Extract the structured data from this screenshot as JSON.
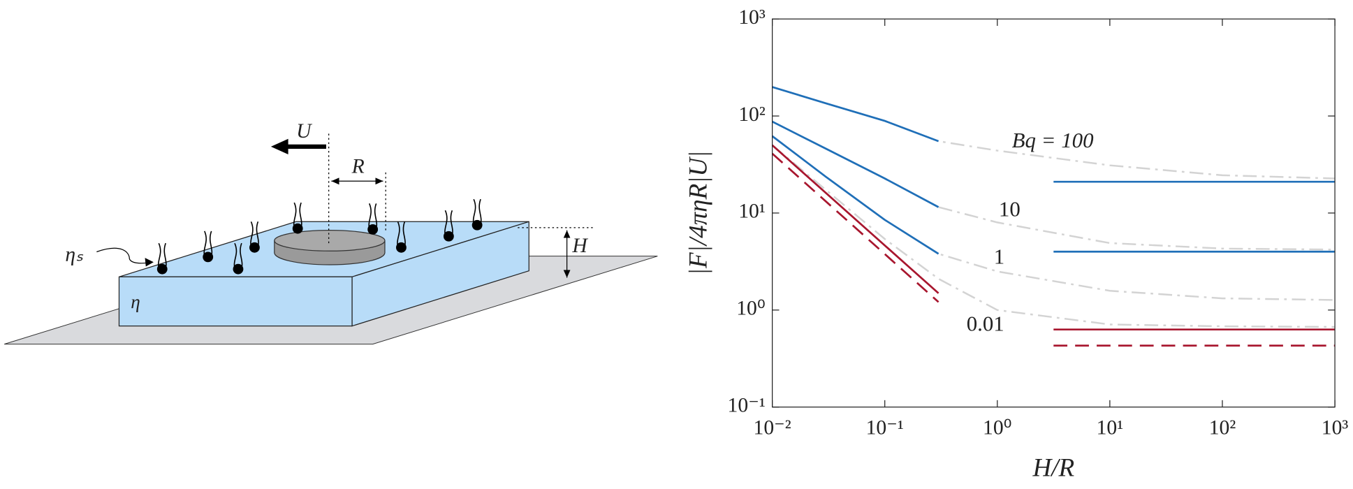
{
  "diagram": {
    "labels": {
      "U": "U",
      "R": "R",
      "H": "H",
      "eta_s": "ηₛ",
      "eta": "η"
    }
  },
  "chart_data": {
    "type": "line",
    "xlabel": "H/R",
    "ylabel": "|F|/4πηR|U|",
    "xscale": "log",
    "yscale": "log",
    "xlim": [
      0.01,
      1000
    ],
    "ylim": [
      0.1,
      1000
    ],
    "xticks": [
      {
        "value": 0.01,
        "label": "10⁻²"
      },
      {
        "value": 0.1,
        "label": "10⁻¹"
      },
      {
        "value": 1,
        "label": "10⁰"
      },
      {
        "value": 10,
        "label": "10¹"
      },
      {
        "value": 100,
        "label": "10²"
      },
      {
        "value": 1000,
        "label": "10³"
      }
    ],
    "yticks": [
      {
        "value": 0.1,
        "label": "10⁻¹"
      },
      {
        "value": 1,
        "label": "10⁰"
      },
      {
        "value": 10,
        "label": "10¹"
      },
      {
        "value": 100,
        "label": "10²"
      },
      {
        "value": 1000,
        "label": "10³"
      }
    ],
    "annotations": [
      "Bq = 100",
      "10",
      "1",
      "0.01"
    ],
    "series": [
      {
        "color": "#d3d3d3",
        "style": "dashdot",
        "x": [
          0.01,
          0.03,
          0.1,
          0.3,
          1,
          10,
          100,
          1000
        ],
        "values": [
          199,
          135,
          89,
          55,
          44,
          31,
          24.5,
          22.7
        ]
      },
      {
        "color": "#d3d3d3",
        "style": "dashdot",
        "x": [
          0.01,
          0.03,
          0.1,
          0.3,
          1,
          10,
          100,
          1000
        ],
        "values": [
          87.5,
          46,
          22.7,
          11.5,
          8,
          4.9,
          4.3,
          4.2
        ]
      },
      {
        "color": "#d3d3d3",
        "style": "dashdot",
        "x": [
          0.01,
          0.03,
          0.1,
          0.3,
          1,
          10,
          100,
          1000
        ],
        "values": [
          62,
          23.6,
          8.5,
          3.8,
          2.5,
          1.58,
          1.32,
          1.27
        ]
      },
      {
        "color": "#d3d3d3",
        "style": "dashdot",
        "x": [
          0.01,
          0.1,
          0.3,
          1,
          10,
          100,
          1000
        ],
        "values": [
          50,
          5.4,
          2.1,
          1.0,
          0.71,
          0.68,
          0.67
        ]
      },
      {
        "color": "#1f6fb8",
        "style": "solid",
        "x": [
          0.01,
          0.03,
          0.1,
          0.3
        ],
        "values": [
          199,
          135,
          89,
          55
        ]
      },
      {
        "color": "#1f6fb8",
        "style": "solid",
        "x": [
          0.01,
          0.03,
          0.1,
          0.3
        ],
        "values": [
          87.5,
          46,
          22.7,
          11.5
        ]
      },
      {
        "color": "#1f6fb8",
        "style": "solid",
        "x": [
          0.01,
          0.03,
          0.1,
          0.3
        ],
        "values": [
          62,
          23.6,
          8.5,
          3.8
        ]
      },
      {
        "color": "#1f6fb8",
        "style": "solid",
        "x": [
          3.16,
          1000
        ],
        "values": [
          21,
          21
        ]
      },
      {
        "color": "#1f6fb8",
        "style": "solid",
        "x": [
          3.16,
          1000
        ],
        "values": [
          4.0,
          4.0
        ]
      },
      {
        "color": "#a8162e",
        "style": "solid",
        "x": [
          0.01,
          0.3
        ],
        "values": [
          50,
          1.49
        ]
      },
      {
        "color": "#a8162e",
        "style": "dashed",
        "x": [
          0.01,
          0.3
        ],
        "values": [
          41,
          1.21
        ]
      },
      {
        "color": "#a8162e",
        "style": "solid",
        "x": [
          3.16,
          1000
        ],
        "values": [
          0.63,
          0.63
        ]
      },
      {
        "color": "#a8162e",
        "style": "dashed",
        "x": [
          3.16,
          1000
        ],
        "values": [
          0.43,
          0.43
        ]
      }
    ]
  }
}
